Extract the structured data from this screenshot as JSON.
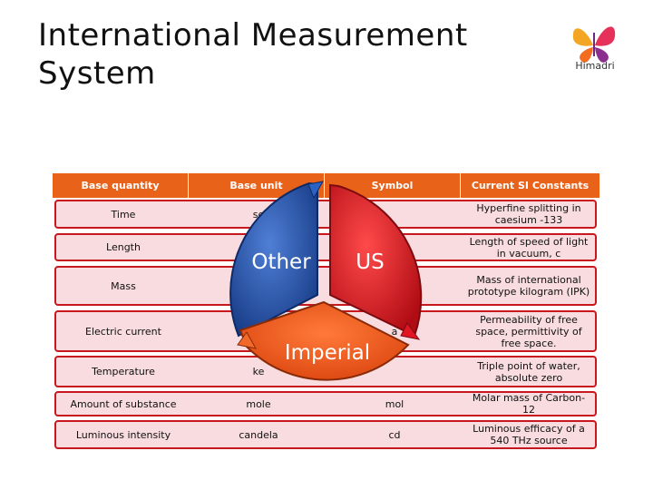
{
  "title": "International Measurement System",
  "logo": {
    "text": "Himadri",
    "icon": "butterfly-logo-icon"
  },
  "table": {
    "headers": [
      "Base quantity",
      "Base unit",
      "Symbol",
      "Current SI Constants"
    ],
    "rows": [
      [
        "Time",
        "se",
        "",
        "Hyperfine splitting in caesium -133"
      ],
      [
        "Length",
        "",
        "",
        "Length of speed of light in vacuum, c"
      ],
      [
        "Mass",
        "",
        "",
        "Mass of international prototype kilogram (IPK)"
      ],
      [
        "Electric current",
        "mpe",
        "a",
        "Permeability of free space, permittivity of free space."
      ],
      [
        "Temperature",
        "ke",
        "",
        "Triple point of water, absolute zero"
      ],
      [
        "Amount of substance",
        "mole",
        "mol",
        "Molar mass of Carbon-12"
      ],
      [
        "Luminous intensity",
        "candela",
        "cd",
        "Luminous efficacy of a 540 THz source"
      ]
    ]
  },
  "cycle": {
    "segments": [
      "Other",
      "US",
      "Imperial"
    ]
  },
  "colors": {
    "header": "#e8621a",
    "row_border": "#c8171d",
    "row_fill": "#f8dcdf",
    "blue": "#1f4ea3",
    "red": "#d8101c",
    "orange": "#f05a1a"
  }
}
